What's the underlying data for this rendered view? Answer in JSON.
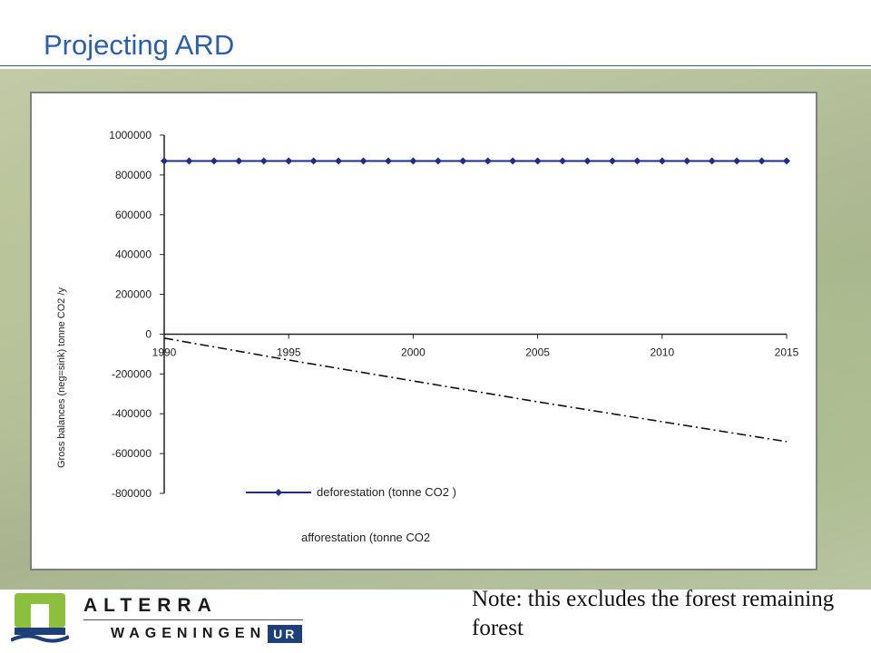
{
  "slide": {
    "title": "Projecting ARD",
    "note": "Note: this excludes the forest remaining forest",
    "logo": {
      "top_text": "ALTERRA",
      "bottom_text": "WAGENINGEN",
      "badge": "UR"
    }
  },
  "colors": {
    "title": "#2a5fae",
    "deforestation_line": "#1f2d8a",
    "afforestation_line": "#111111",
    "panel_border": "#7f7f7f",
    "logo_green": "#8dbf3e",
    "logo_blue": "#1d3f7a"
  },
  "chart_data": {
    "type": "line",
    "ylabel": "Gross balances (neg=sink) tonne CO2 /y",
    "xlim": [
      1990,
      2015
    ],
    "ylim": [
      -800000,
      1000000
    ],
    "x_ticks": [
      "1990",
      "1995",
      "2000",
      "2005",
      "2010",
      "2015"
    ],
    "y_ticks": [
      "1000000",
      "800000",
      "600000",
      "400000",
      "200000",
      "0",
      "-200000",
      "-400000",
      "-600000",
      "-800000"
    ],
    "y_tick_values": [
      1000000,
      800000,
      600000,
      400000,
      200000,
      0,
      -200000,
      -400000,
      -600000,
      -800000
    ],
    "grid": false,
    "legend_position": "bottom-inside",
    "series": [
      {
        "name": "deforestation (tonne CO2 )",
        "style": "solid-diamond-markers",
        "x": [
          1990,
          1991,
          1992,
          1993,
          1994,
          1995,
          1996,
          1997,
          1998,
          1999,
          2000,
          2001,
          2002,
          2003,
          2004,
          2005,
          2006,
          2007,
          2008,
          2009,
          2010,
          2011,
          2012,
          2013,
          2014,
          2015
        ],
        "values": [
          870000,
          870000,
          870000,
          870000,
          870000,
          870000,
          870000,
          870000,
          870000,
          870000,
          870000,
          870000,
          870000,
          870000,
          870000,
          870000,
          870000,
          870000,
          870000,
          870000,
          870000,
          870000,
          870000,
          870000,
          870000,
          870000
        ]
      },
      {
        "name": "afforestation (tonne CO2",
        "style": "dash-dot",
        "x": [
          1990,
          1991,
          1992,
          1993,
          1994,
          1995,
          1996,
          1997,
          1998,
          1999,
          2000,
          2001,
          2002,
          2003,
          2004,
          2005,
          2006,
          2007,
          2008,
          2009,
          2010,
          2011,
          2012,
          2013,
          2014,
          2015
        ],
        "values": [
          -20000,
          -42000,
          -64000,
          -86000,
          -108000,
          -130000,
          -151000,
          -172000,
          -193000,
          -214000,
          -235000,
          -256000,
          -277000,
          -298000,
          -319000,
          -340000,
          -360000,
          -380000,
          -400000,
          -420000,
          -440000,
          -460000,
          -480000,
          -500000,
          -520000,
          -540000
        ]
      }
    ]
  }
}
